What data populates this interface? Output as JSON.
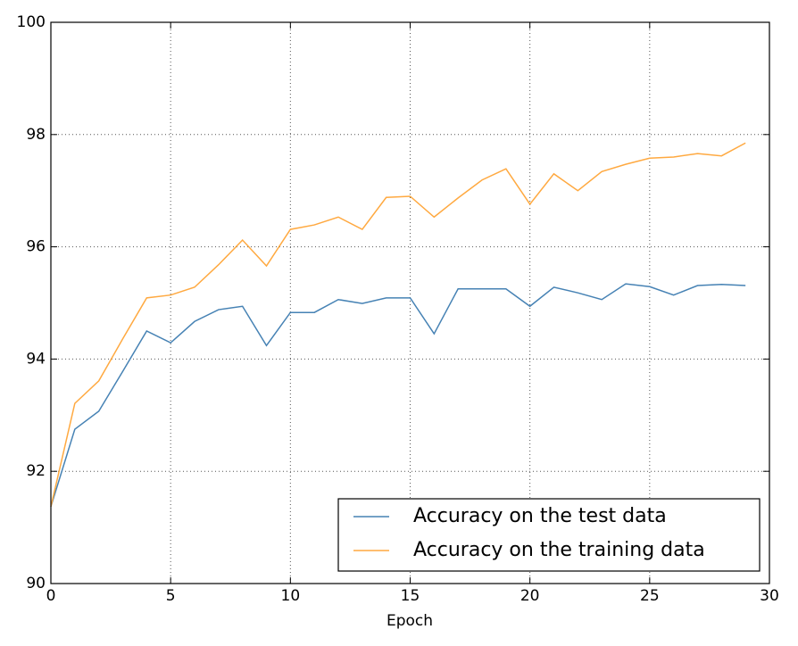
{
  "chart_data": {
    "type": "line",
    "xlabel": "Epoch",
    "x": [
      0,
      1,
      2,
      3,
      4,
      5,
      6,
      7,
      8,
      9,
      10,
      11,
      12,
      13,
      14,
      15,
      16,
      17,
      18,
      19,
      20,
      21,
      22,
      23,
      24,
      25,
      26,
      27,
      28,
      29
    ],
    "series": [
      {
        "name": "Accuracy on the test data",
        "color": "#4682b4",
        "values": [
          91.37,
          92.75,
          93.07,
          93.78,
          94.5,
          94.29,
          94.67,
          94.88,
          94.94,
          94.24,
          94.83,
          94.83,
          95.06,
          94.99,
          95.09,
          95.09,
          94.45,
          95.25,
          95.25,
          95.25,
          94.94,
          95.28,
          95.18,
          95.06,
          95.34,
          95.29,
          95.14,
          95.31,
          95.33,
          95.31
        ]
      },
      {
        "name": "Accuracy on the training data",
        "color": "#ffa940",
        "values": [
          91.37,
          93.21,
          93.61,
          94.36,
          95.09,
          95.14,
          95.28,
          95.68,
          96.12,
          95.66,
          96.31,
          96.39,
          96.53,
          96.31,
          96.88,
          96.9,
          96.53,
          96.87,
          97.19,
          97.39,
          96.76,
          97.3,
          97.0,
          97.34,
          97.47,
          97.58,
          97.6,
          97.66,
          97.62,
          97.85
        ]
      }
    ],
    "xlim": [
      0,
      30
    ],
    "xticks": [
      0,
      5,
      10,
      15,
      20,
      25,
      30
    ],
    "ylim": [
      90,
      100
    ],
    "yticks": [
      90,
      92,
      94,
      96,
      98,
      100
    ],
    "grid": true,
    "legend": "lower right"
  }
}
